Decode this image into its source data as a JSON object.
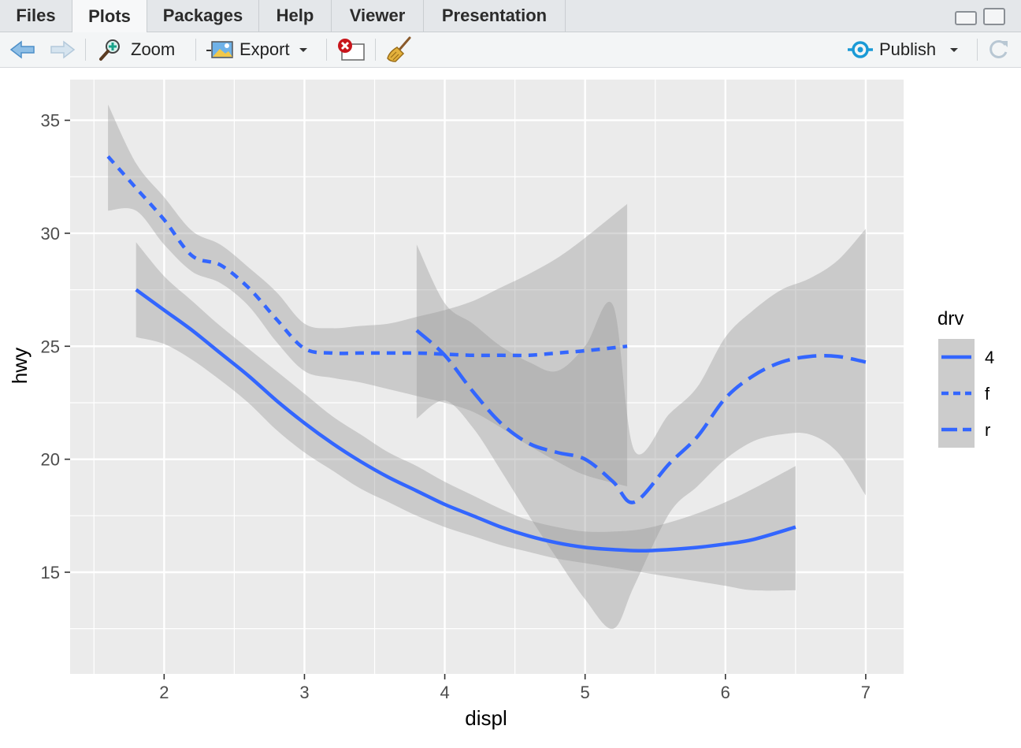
{
  "tabs": [
    {
      "label": "Files",
      "active": false
    },
    {
      "label": "Plots",
      "active": true
    },
    {
      "label": "Packages",
      "active": false
    },
    {
      "label": "Help",
      "active": false
    },
    {
      "label": "Viewer",
      "active": false
    },
    {
      "label": "Presentation",
      "active": false
    }
  ],
  "toolbar": {
    "zoom_label": "Zoom",
    "export_label": "Export",
    "publish_label": "Publish"
  },
  "icons": {
    "back": "arrow-left-icon",
    "forward": "arrow-right-icon",
    "zoom": "magnifier-icon",
    "export": "image-export-icon",
    "remove": "remove-plot-icon",
    "clear": "broom-icon",
    "publish": "publish-icon",
    "refresh": "refresh-icon"
  },
  "colors": {
    "line": "#3366ff",
    "ribbon": "#999999",
    "panel": "#ebebeb",
    "grid": "#ffffff",
    "accent": "#1a9ad6"
  },
  "chart_data": {
    "type": "line",
    "xlabel": "displ",
    "ylabel": "hwy",
    "xlim": [
      1.33,
      7.27
    ],
    "ylim": [
      10.5,
      36.8
    ],
    "xticks": [
      2,
      3,
      4,
      5,
      6,
      7
    ],
    "yticks": [
      15,
      20,
      25,
      30,
      35
    ],
    "grid": true,
    "legend": {
      "title": "drv",
      "position": "right",
      "entries": [
        "4",
        "f",
        "r"
      ]
    },
    "series": [
      {
        "name": "4",
        "linetype": "solid",
        "x": [
          1.8,
          2.0,
          2.2,
          2.4,
          2.6,
          2.8,
          3.0,
          3.2,
          3.4,
          3.6,
          3.8,
          4.0,
          4.2,
          4.4,
          4.6,
          4.8,
          5.0,
          5.2,
          5.4,
          5.6,
          5.8,
          6.0,
          6.2,
          6.5
        ],
        "y": [
          27.5,
          26.6,
          25.7,
          24.7,
          23.7,
          22.6,
          21.6,
          20.7,
          19.9,
          19.2,
          18.6,
          18.0,
          17.5,
          17.0,
          16.6,
          16.3,
          16.1,
          16.0,
          15.95,
          16.0,
          16.1,
          16.25,
          16.45,
          17.0
        ],
        "ymin": [
          25.4,
          25.1,
          24.4,
          23.5,
          22.5,
          21.3,
          20.3,
          19.5,
          18.7,
          18.1,
          17.5,
          17.0,
          16.6,
          16.2,
          15.9,
          15.6,
          15.4,
          15.2,
          15.0,
          14.8,
          14.6,
          14.4,
          14.2,
          14.2
        ],
        "ymax": [
          29.6,
          28.1,
          27.0,
          25.9,
          24.9,
          23.9,
          22.9,
          21.9,
          21.1,
          20.3,
          19.7,
          19.0,
          18.4,
          17.8,
          17.3,
          17.0,
          16.8,
          16.8,
          16.9,
          17.2,
          17.6,
          18.1,
          18.7,
          19.7
        ]
      },
      {
        "name": "f",
        "linetype": "dotted",
        "x": [
          1.6,
          1.8,
          2.0,
          2.2,
          2.4,
          2.6,
          2.8,
          3.0,
          3.2,
          3.4,
          3.6,
          3.8,
          4.0,
          4.2,
          4.4,
          4.6,
          4.8,
          5.0,
          5.3
        ],
        "y": [
          33.4,
          32.0,
          30.6,
          29.0,
          28.6,
          27.6,
          26.2,
          24.9,
          24.7,
          24.7,
          24.7,
          24.7,
          24.65,
          24.6,
          24.6,
          24.6,
          24.7,
          24.8,
          25.0
        ],
        "ymin": [
          31.0,
          31.0,
          29.5,
          28.3,
          27.8,
          26.8,
          25.2,
          23.9,
          23.6,
          23.4,
          23.1,
          22.8,
          22.5,
          22.1,
          21.4,
          20.6,
          19.9,
          19.3,
          18.8
        ],
        "ymax": [
          35.7,
          33.1,
          31.6,
          30.1,
          29.5,
          28.5,
          27.4,
          26.0,
          25.8,
          25.9,
          26.0,
          26.3,
          26.6,
          27.0,
          27.6,
          28.2,
          28.9,
          29.8,
          31.3
        ]
      },
      {
        "name": "r",
        "linetype": "dashed",
        "x": [
          3.8,
          4.0,
          4.2,
          4.4,
          4.6,
          4.8,
          5.0,
          5.2,
          5.35,
          5.6,
          5.8,
          6.0,
          6.2,
          6.4,
          6.6,
          6.8,
          7.0
        ],
        "y": [
          25.7,
          24.6,
          23.0,
          21.6,
          20.7,
          20.3,
          20.0,
          19.0,
          18.1,
          19.8,
          21.0,
          22.7,
          23.7,
          24.3,
          24.55,
          24.55,
          24.3
        ],
        "ymin": [
          21.8,
          22.6,
          21.4,
          19.5,
          17.5,
          15.6,
          13.8,
          12.5,
          14.4,
          17.6,
          18.8,
          20.0,
          20.8,
          21.1,
          21.1,
          20.3,
          18.4
        ],
        "ymax": [
          29.5,
          26.9,
          26.0,
          25.0,
          24.3,
          23.9,
          25.0,
          26.8,
          20.4,
          22.0,
          23.2,
          25.4,
          26.6,
          27.5,
          28.0,
          28.8,
          30.2
        ]
      }
    ]
  }
}
